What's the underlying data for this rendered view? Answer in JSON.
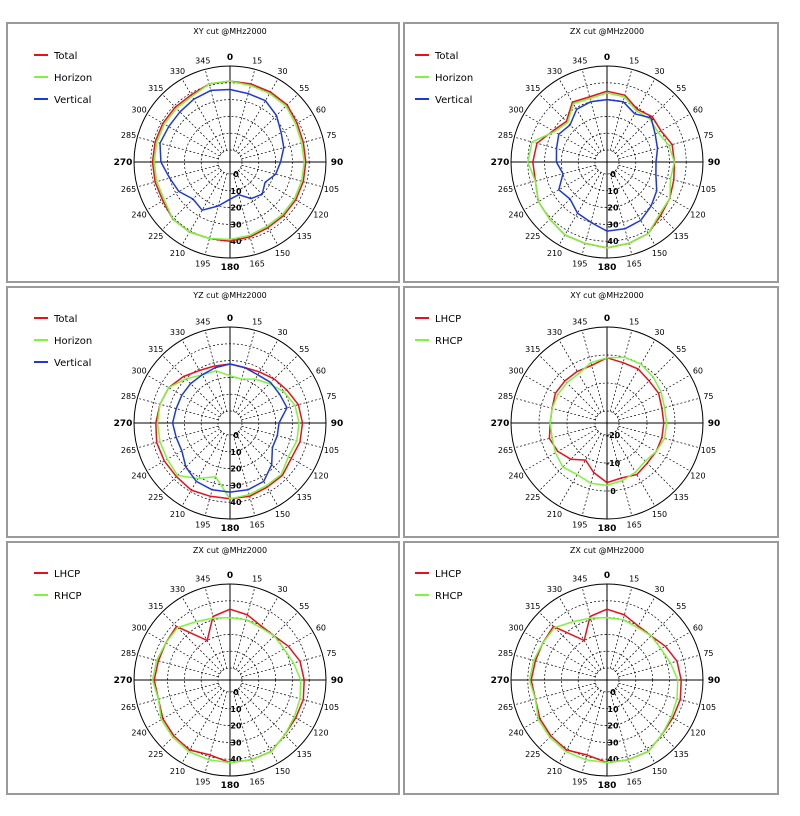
{
  "colors": {
    "red": "#e8101a",
    "green": "#7cf53c",
    "blue": "#1d39d8",
    "grid": "#000000"
  },
  "chart_data": [
    {
      "type": "polar-line",
      "title": "XY cut @MHz2000",
      "rings": [
        0,
        10,
        20,
        30,
        40
      ],
      "angular_ticks": [
        "0",
        "15",
        "30",
        "55",
        "60",
        "75",
        "90",
        "105",
        "120",
        "135",
        "150",
        "165",
        "180",
        "195",
        "210",
        "225",
        "240",
        "265",
        "270",
        "285",
        "300",
        "315",
        "330",
        "345"
      ],
      "series": [
        {
          "name": "Total",
          "color": "#e8101a",
          "r": [
            41,
            41,
            41,
            41,
            39,
            38,
            38,
            38,
            38,
            38,
            38,
            39,
            40,
            40,
            41,
            41,
            39,
            39,
            39,
            39,
            39,
            39,
            39,
            41
          ]
        },
        {
          "name": "Horizon",
          "color": "#7cf53c",
          "r": [
            41,
            40,
            40,
            40,
            38,
            37,
            37,
            37,
            37,
            37,
            37,
            38,
            39,
            40,
            41,
            41,
            38,
            38,
            38,
            38,
            38,
            38,
            38,
            41
          ]
        },
        {
          "name": "Vertical",
          "color": "#1d39d8",
          "r": [
            36,
            35,
            35,
            32,
            28,
            26,
            23,
            21,
            17,
            20,
            18,
            13,
            15,
            20,
            26,
            24,
            28,
            30,
            34,
            36,
            35,
            35,
            36,
            37
          ]
        }
      ]
    },
    {
      "type": "polar-line",
      "title": "ZX cut @MHz2000",
      "rings": [
        0,
        10,
        20,
        30,
        40
      ],
      "angular_ticks": [
        "0",
        "15",
        "30",
        "55",
        "60",
        "75",
        "90",
        "105",
        "120",
        "135",
        "150",
        "165",
        "180",
        "195",
        "210",
        "225",
        "240",
        "265",
        "270",
        "285",
        "300",
        "315",
        "330",
        "345"
      ],
      "series": [
        {
          "name": "Total",
          "color": "#e8101a",
          "r": [
            35,
            34,
            29,
            31,
            30,
            33,
            33,
            34,
            36,
            38,
            42,
            43,
            44,
            43,
            43,
            41,
            40,
            37,
            37,
            36,
            30,
            27,
            34,
            33
          ]
        },
        {
          "name": "Horizon",
          "color": "#7cf53c",
          "r": [
            34,
            33,
            28,
            29,
            28,
            31,
            33,
            32,
            36,
            37,
            42,
            43,
            44,
            43,
            43,
            41,
            40,
            37,
            40,
            39,
            29,
            26,
            33,
            32
          ]
        },
        {
          "name": "Vertical",
          "color": "#1d39d8",
          "r": [
            30,
            30,
            26,
            30,
            26,
            24,
            22,
            23,
            27,
            30,
            33,
            34,
            34,
            30,
            28,
            24,
            26,
            20,
            23,
            24,
            26,
            24,
            29,
            30
          ]
        }
      ]
    },
    {
      "type": "polar-line",
      "title": "YZ cut @MHz2000",
      "rings": [
        0,
        10,
        20,
        30,
        40
      ],
      "angular_ticks": [
        "0",
        "15",
        "30",
        "55",
        "60",
        "75",
        "90",
        "105",
        "120",
        "135",
        "150",
        "165",
        "180",
        "195",
        "210",
        "225",
        "240",
        "265",
        "270",
        "285",
        "300",
        "315",
        "330",
        "345"
      ],
      "series": [
        {
          "name": "Total",
          "color": "#e8101a",
          "r": [
            28,
            27,
            28,
            30,
            32,
            35,
            36,
            36,
            35,
            37,
            37,
            38,
            38,
            38,
            39,
            38,
            38,
            38,
            37,
            36,
            35,
            32,
            29,
            28
          ]
        },
        {
          "name": "Horizon",
          "color": "#7cf53c",
          "r": [
            21,
            20,
            23,
            26,
            30,
            33,
            34,
            34,
            33,
            36,
            36,
            37,
            38,
            26,
            31,
            37,
            36,
            36,
            36,
            36,
            35,
            30,
            26,
            25
          ]
        },
        {
          "name": "Vertical",
          "color": "#1d39d8",
          "r": [
            28,
            27,
            26,
            27,
            27,
            28,
            22,
            22,
            22,
            28,
            33,
            34,
            34,
            34,
            33,
            30,
            26,
            26,
            27,
            26,
            26,
            26,
            26,
            27
          ]
        }
      ]
    },
    {
      "type": "polar-line",
      "title": "XY cut @MHz2000",
      "rings": [
        -20,
        -10,
        0
      ],
      "angular_ticks": [
        "0",
        "15",
        "30",
        "55",
        "60",
        "75",
        "90",
        "105",
        "120",
        "135",
        "150",
        "165",
        "180",
        "195",
        "210",
        "225",
        "240",
        "265",
        "270",
        "285",
        "300",
        "315",
        "330",
        "345"
      ],
      "series": [
        {
          "name": "LHCP",
          "color": "#e8101a",
          "r": [
            -1,
            -2,
            -2,
            -3,
            -3,
            -4,
            -4,
            -4,
            -4,
            -4,
            -3,
            -4,
            -3,
            -6,
            -9,
            -6,
            -4,
            -3,
            -4,
            -4,
            -3,
            -3,
            -3,
            -3
          ]
        },
        {
          "name": "RHCP",
          "color": "#7cf53c",
          "r": [
            -1,
            0,
            0,
            -1,
            -2,
            -3,
            -3,
            -3,
            -4,
            -5,
            -4,
            -3,
            -2,
            -2,
            -3,
            -2,
            -3,
            -4,
            -4,
            -4,
            -4,
            -4,
            -4,
            -2
          ]
        }
      ]
    },
    {
      "type": "polar-line",
      "title": "ZX cut @MHz2000",
      "rings": [
        0,
        10,
        20,
        30,
        40
      ],
      "angular_ticks": [
        "0",
        "15",
        "30",
        "55",
        "60",
        "75",
        "90",
        "105",
        "120",
        "135",
        "150",
        "165",
        "180",
        "195",
        "210",
        "225",
        "240",
        "265",
        "270",
        "285",
        "300",
        "315",
        "330",
        "345"
      ],
      "series": [
        {
          "name": "LHCP",
          "color": "#e8101a",
          "r": [
            35,
            33,
            30,
            30,
            33,
            36,
            37,
            38,
            38,
            39,
            42,
            42,
            42,
            39,
            41,
            40,
            39,
            37,
            38,
            37,
            37,
            38,
            20,
            32
          ]
        },
        {
          "name": "RHCP",
          "color": "#7cf53c",
          "r": [
            30,
            30,
            29,
            30,
            30,
            32,
            35,
            36,
            37,
            39,
            42,
            42,
            42,
            42,
            42,
            41,
            40,
            37,
            39,
            38,
            37,
            37,
            33,
            31
          ]
        }
      ]
    },
    {
      "type": "polar-line",
      "title": "ZX cut @MHz2000",
      "rings": [
        0,
        10,
        20,
        30,
        40
      ],
      "angular_ticks": [
        "0",
        "15",
        "30",
        "55",
        "60",
        "75",
        "90",
        "105",
        "120",
        "135",
        "150",
        "165",
        "180",
        "195",
        "210",
        "225",
        "240",
        "265",
        "270",
        "285",
        "300",
        "315",
        "330",
        "345"
      ],
      "series": [
        {
          "name": "LHCP",
          "color": "#e8101a",
          "r": [
            35,
            33,
            30,
            30,
            33,
            36,
            37,
            38,
            38,
            39,
            42,
            42,
            42,
            39,
            41,
            40,
            39,
            37,
            38,
            37,
            37,
            38,
            20,
            32
          ]
        },
        {
          "name": "RHCP",
          "color": "#7cf53c",
          "r": [
            30,
            30,
            29,
            30,
            30,
            32,
            35,
            36,
            37,
            39,
            42,
            42,
            42,
            42,
            42,
            41,
            40,
            37,
            39,
            38,
            37,
            37,
            33,
            31
          ]
        }
      ]
    }
  ]
}
